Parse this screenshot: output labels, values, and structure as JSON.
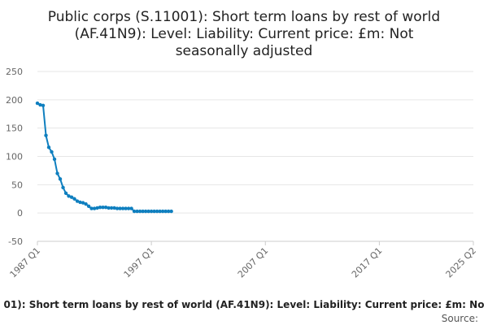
{
  "chart_data": {
    "type": "line",
    "title_lines": [
      "Public corps (S.11001): Short term loans by rest of world",
      "(AF.41N9): Level: Liability: Current price: £m: Not",
      "seasonally adjusted"
    ],
    "xlabel": "",
    "ylabel": "",
    "ylim": [
      -50,
      250
    ],
    "yticks": [
      -50,
      0,
      50,
      100,
      150,
      200,
      250
    ],
    "xticks": [
      {
        "label": "1987 Q1",
        "index": 0
      },
      {
        "label": "1997 Q1",
        "index": 40
      },
      {
        "label": "2007 Q1",
        "index": 80
      },
      {
        "label": "2017 Q1",
        "index": 120
      },
      {
        "label": "2025 Q2",
        "index": 153
      }
    ],
    "grid": true,
    "legend": {
      "placement": "bottom",
      "text": "01): Short term loans by rest of world (AF.41N9): Level: Liability: Current price: £m: No"
    },
    "source_label": "Source:",
    "colors": {
      "series": "#0f7fbf"
    },
    "series": [
      {
        "values": [
          194,
          191,
          190,
          137,
          116,
          108,
          95,
          70,
          60,
          45,
          35,
          30,
          28,
          25,
          21,
          19,
          18,
          16,
          12,
          8,
          8,
          9,
          10,
          10,
          10,
          9,
          9,
          9,
          8,
          8,
          8,
          8,
          8,
          8,
          3,
          3,
          3,
          3,
          3,
          3,
          3,
          3,
          3,
          3,
          3,
          3,
          3,
          3
        ]
      }
    ]
  }
}
